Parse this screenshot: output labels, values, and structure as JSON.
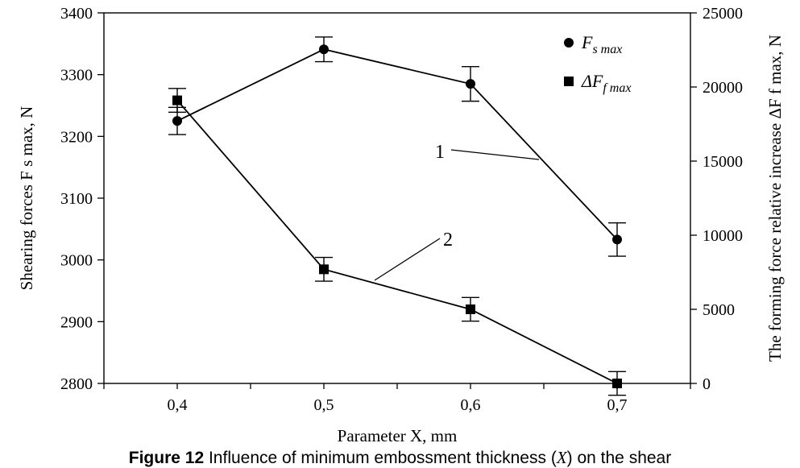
{
  "chart_data": {
    "type": "line",
    "x": [
      0.4,
      0.5,
      0.6,
      0.7
    ],
    "x_tick_labels": [
      "0,4",
      "0,5",
      "0,6",
      "0,7"
    ],
    "xlim": [
      0.35,
      0.75
    ],
    "xlabel": "Parameter X, mm",
    "y_left": {
      "label": "Shearing forces F s max, N",
      "ticks": [
        "2800",
        "2900",
        "3000",
        "3100",
        "3200",
        "3300",
        "3400"
      ],
      "lim": [
        2800,
        3400
      ]
    },
    "y_right": {
      "label": "The forming force relative increase ΔF f max, N",
      "ticks": [
        "0",
        "5000",
        "10000",
        "15000",
        "20000",
        "25000"
      ],
      "lim": [
        0,
        25000
      ]
    },
    "series": [
      {
        "name": "F s max",
        "axis": "left",
        "marker": "circle",
        "values": [
          3225,
          3341,
          3285,
          3033
        ],
        "error": [
          22,
          20,
          28,
          27
        ]
      },
      {
        "name": "ΔF f max",
        "axis": "right",
        "marker": "square",
        "values": [
          19100,
          7700,
          5000,
          0
        ],
        "error": [
          800,
          800,
          800,
          800
        ]
      }
    ],
    "annotations": [
      "1",
      "2"
    ],
    "legend_position": "top-right",
    "grid": false
  },
  "caption": {
    "bold": "Figure 12",
    "text": " Influence of minimum embossment thickness (X) on the shear"
  }
}
